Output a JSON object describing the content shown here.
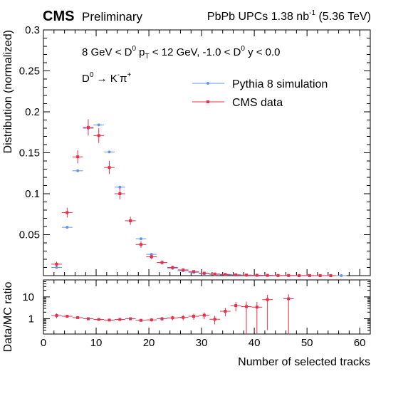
{
  "header": {
    "experiment": "CMS",
    "status": "Preliminary",
    "run_prefix": "PbPb UPCs 1.38 nb",
    "run_exponent": "-1",
    "run_energy": "(5.36 TeV)"
  },
  "annotations": {
    "kinematics_parts": [
      "8 GeV < D",
      "0",
      " p",
      "T",
      " < 12 GeV, -1.0 < D",
      "0",
      " y < 0.0"
    ],
    "decay_parts": [
      "D",
      "0",
      " → K",
      "-",
      "π",
      "+"
    ]
  },
  "colors": {
    "pythia": "#6495ed",
    "data": "#e8304a",
    "axis": "#000000"
  },
  "chart_data": [
    {
      "type": "scatter",
      "panel": "main",
      "ylabel": "Distribution (normalized)",
      "xlim": [
        0,
        62
      ],
      "ylim": [
        0,
        0.3
      ],
      "x_ticks": [
        0,
        10,
        20,
        30,
        40,
        50,
        60
      ],
      "y_ticks": [
        0.05,
        0.1,
        0.15,
        0.2,
        0.25,
        0.3
      ],
      "y_tick_labels": [
        "0.05",
        "0.1",
        "0.15",
        "0.2",
        "0.25",
        "0.3"
      ],
      "legend_position": "top-right",
      "series": [
        {
          "name": "Pythia 8 simulation",
          "x": [
            2.5,
            4.5,
            6.5,
            8.5,
            10.5,
            12.5,
            14.5,
            16.5,
            18.5,
            20.5,
            22.5,
            24.5,
            26.5,
            28.5,
            30.5,
            32.5,
            34.5,
            36.5,
            38.5,
            40.5,
            42.5,
            44.5,
            46.5,
            48.5,
            50.5,
            52.5,
            54.5,
            56.5
          ],
          "y": [
            0.01,
            0.059,
            0.128,
            0.18,
            0.184,
            0.151,
            0.108,
            0.067,
            0.045,
            0.026,
            0.016,
            0.009,
            0.006,
            0.004,
            0.0025,
            0.0015,
            0.001,
            0.0006,
            0.0004,
            0.0003,
            0.0002,
            0.0001,
            0.0001,
            5e-05,
            5e-05,
            3e-05,
            2e-05,
            1e-05
          ],
          "x_err": 1
        },
        {
          "name": "CMS data",
          "x": [
            2.5,
            4.5,
            6.5,
            8.5,
            10.5,
            12.5,
            14.5,
            16.5,
            18.5,
            20.5,
            22.5,
            24.5,
            26.5,
            28.5,
            30.5,
            32.5,
            34.5,
            36.5,
            38.5,
            40.5,
            42.5,
            44.5,
            46.5,
            48.5,
            50.5,
            52.5,
            54.5
          ],
          "y": [
            0.014,
            0.077,
            0.145,
            0.181,
            0.171,
            0.132,
            0.1,
            0.067,
            0.038,
            0.023,
            0.016,
            0.01,
            0.007,
            0.005,
            0.003,
            0.002,
            0.0015,
            0.001,
            0.0007,
            0.0005,
            0.0004,
            0.0002,
            0.0002,
            0.0001,
            0.0001,
            5e-05,
            5e-05
          ],
          "y_err": [
            0.003,
            0.006,
            0.008,
            0.01,
            0.009,
            0.008,
            0.007,
            0.005,
            0.004,
            0.003,
            0.0025,
            0.002,
            0.0015,
            0.0012,
            0.001,
            0.0008,
            0.0006,
            0.0005,
            0.0004,
            0.0003,
            0.0003,
            0.0002,
            0.0002,
            0.0001,
            0.0001,
            5e-05,
            5e-05
          ],
          "x_err": 1
        }
      ]
    },
    {
      "type": "scatter",
      "panel": "ratio",
      "xlabel": "Number of selected tracks",
      "ylabel": "Data/MC ratio",
      "xlim": [
        0,
        62
      ],
      "ylim": [
        0.2,
        60
      ],
      "y_scale": "log",
      "x_ticks": [
        0,
        10,
        20,
        30,
        40,
        50,
        60
      ],
      "y_ticks": [
        1,
        10
      ],
      "y_tick_labels": [
        "1",
        "10"
      ],
      "series": [
        {
          "name": "CMS data",
          "x": [
            2.5,
            4.5,
            6.5,
            8.5,
            10.5,
            12.5,
            14.5,
            16.5,
            18.5,
            20.5,
            22.5,
            24.5,
            26.5,
            28.5,
            30.5,
            32.5,
            34.5,
            36.5,
            38.5,
            40.5,
            42.5,
            46.5
          ],
          "y": [
            1.4,
            1.3,
            1.13,
            1.0,
            0.93,
            0.87,
            0.93,
            1.0,
            0.85,
            0.89,
            1.0,
            1.1,
            1.15,
            1.3,
            1.45,
            0.95,
            2.2,
            4.0,
            3.6,
            3.4,
            7.5,
            8.2
          ],
          "y_err_low": [
            0.35,
            0.15,
            0.1,
            0.08,
            0.08,
            0.08,
            0.1,
            0.1,
            0.12,
            0.15,
            0.2,
            0.25,
            0.3,
            0.4,
            0.5,
            0.4,
            0.9,
            1.8,
            3.4,
            3.2,
            7.2,
            8.0
          ],
          "y_err_high": [
            0.35,
            0.15,
            0.1,
            0.08,
            0.08,
            0.08,
            0.1,
            0.1,
            0.12,
            0.15,
            0.2,
            0.25,
            0.3,
            0.4,
            0.5,
            0.4,
            0.9,
            1.8,
            2.5,
            2.5,
            5.0,
            5.0
          ],
          "x_err": 1
        }
      ]
    }
  ]
}
